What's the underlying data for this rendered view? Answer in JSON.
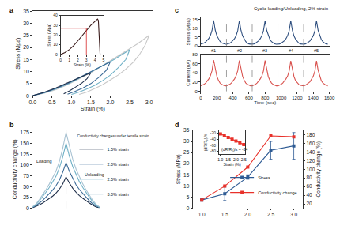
{
  "chart_data": [
    {
      "type": "line",
      "title": "a",
      "x_label": "Strain (%)",
      "y_label": "Stress (Mpa)",
      "xlim": [
        0,
        3.1
      ],
      "xticks": [
        {
          "value": 0,
          "label": "0.0"
        },
        0.5,
        {
          "value": 1,
          "label": "1.0"
        },
        1.5,
        {
          "value": 2,
          "label": "2.0"
        },
        2.5,
        {
          "value": 3,
          "label": "3.0"
        }
      ],
      "ylim": [
        0,
        35
      ],
      "yticks": [
        0,
        5,
        10,
        15,
        20,
        25,
        30,
        35
      ],
      "series": [
        {
          "color": "#c8c8c8",
          "x": [
            0,
            0.3,
            0.6,
            0.9,
            1.2,
            1.5,
            1.8,
            2.1,
            2.4,
            2.7,
            3.0,
            2.9,
            2.75,
            2.6,
            2.4,
            2.2,
            2.0,
            1.8,
            1.6,
            1.4,
            1.2
          ],
          "values": [
            0,
            1,
            2.5,
            4.5,
            7,
            9.5,
            12.5,
            15.5,
            18.5,
            21.5,
            25,
            21,
            17,
            14,
            11,
            8.5,
            6.5,
            4.5,
            3,
            1.5,
            0.5
          ]
        },
        {
          "color": "#6fb0c6",
          "x": [
            0,
            0.3,
            0.6,
            0.9,
            1.2,
            1.5,
            1.8,
            2.1,
            2.5,
            2.4,
            2.2,
            2.0,
            1.8,
            1.6,
            1.4,
            1.2,
            1.0
          ],
          "values": [
            0,
            1.2,
            2.8,
            4.8,
            7.2,
            9.8,
            12.5,
            15,
            19,
            15,
            11.5,
            8.5,
            6.2,
            4.3,
            2.8,
            1.5,
            0.5
          ]
        },
        {
          "color": "#3b6a96",
          "x": [
            0,
            0.3,
            0.6,
            0.9,
            1.2,
            1.5,
            1.8,
            2.0,
            1.9,
            1.7,
            1.5,
            1.3,
            1.1,
            0.9
          ],
          "values": [
            0,
            1.3,
            3,
            5,
            7.5,
            10,
            12.5,
            14,
            10.5,
            7.5,
            5,
            3.2,
            1.8,
            0.6
          ]
        },
        {
          "color": "#1f2f4a",
          "x": [
            0,
            0.3,
            0.6,
            0.9,
            1.2,
            1.5,
            1.4,
            1.25,
            1.1,
            0.95,
            0.8
          ],
          "values": [
            0,
            1.4,
            3.2,
            5.3,
            7.5,
            9.5,
            7,
            5,
            3.5,
            2,
            0.8
          ]
        }
      ]
    },
    {
      "type": "line",
      "x_label": "Strain (%)",
      "y_label": "Stress (Mpa)",
      "xlim": [
        0,
        5
      ],
      "xticks": [
        0,
        1,
        2,
        3,
        4,
        5
      ],
      "ylim": [
        0,
        40
      ],
      "yticks": [
        0,
        10,
        20,
        30,
        40
      ],
      "series": [
        {
          "color": "#3a1a1a",
          "x": [
            0,
            0.5,
            1,
            1.5,
            2,
            2.5,
            3,
            3.5,
            4,
            4.3,
            4.4,
            4.5,
            4.6
          ],
          "values": [
            0,
            2,
            5,
            9,
            14,
            19.5,
            25,
            30,
            34,
            36.5,
            35,
            15,
            0
          ]
        }
      ],
      "guides": {
        "x": 3,
        "y": 27,
        "color": "#d62728"
      }
    },
    {
      "type": "line",
      "title": "b",
      "y_label": "Conductivity change (%)",
      "tick_labels": "y",
      "xlim": [
        0,
        36
      ],
      "ylim": [
        0,
        180
      ],
      "yticks": [
        0,
        25,
        50,
        75,
        100,
        125,
        150,
        175
      ],
      "x": [
        0,
        1,
        2,
        3,
        4,
        5,
        6,
        7,
        8,
        9,
        10,
        11,
        12,
        13,
        14,
        15,
        16,
        17,
        18,
        19,
        20
      ],
      "legend": "upper right",
      "legend_title": "Conductivity changes under tensile strain",
      "annotations": [
        "Loading",
        "Unloading"
      ],
      "dividers": [
        10
      ],
      "series": [
        {
          "name": "1.5% strain",
          "color": "#1f2f4a",
          "values": [
            1,
            4,
            8,
            12,
            17,
            22,
            28,
            35,
            44,
            56,
            72,
            58,
            46,
            37,
            29,
            23,
            17,
            12,
            7,
            3,
            1
          ]
        },
        {
          "name": "2.0% strain",
          "color": "#3b6a96",
          "values": [
            2,
            6,
            12,
            18,
            26,
            34,
            42,
            52,
            65,
            83,
            105,
            85,
            68,
            54,
            43,
            34,
            25,
            17,
            10,
            5,
            2
          ]
        },
        {
          "name": "2.5% strain",
          "color": "#6fb0c6",
          "values": [
            3,
            8,
            17,
            26,
            37,
            48,
            60,
            74,
            93,
            118,
            150,
            120,
            96,
            77,
            61,
            48,
            36,
            25,
            15,
            7,
            2
          ]
        },
        {
          "name": "3.0% strain",
          "color": "#a9c3d3",
          "values": [
            4,
            10,
            20,
            31,
            43,
            56,
            70,
            86,
            108,
            138,
            175,
            142,
            113,
            90,
            72,
            56,
            42,
            29,
            18,
            9,
            3
          ]
        }
      ]
    },
    {
      "type": "line",
      "title": "c",
      "y_label": "Stress (Mpa)",
      "tick_labels": "y",
      "annotations": [
        "Cyclic loading/Unloading, 2% strain",
        "#1",
        "#2",
        "#3",
        "#4",
        "#5"
      ],
      "xlim": [
        0,
        1600
      ],
      "ylim": [
        0,
        16
      ],
      "yticks": [
        0,
        5,
        10,
        15
      ],
      "dividers": [
        320,
        640,
        960,
        1280
      ],
      "x": [
        0,
        20,
        40,
        60,
        80,
        100,
        120,
        140,
        160,
        180,
        200,
        220,
        240,
        260,
        280,
        300,
        320,
        340,
        360,
        380,
        400,
        420,
        440,
        460,
        480,
        500,
        520,
        540,
        560,
        580,
        600,
        620,
        640,
        660,
        680,
        700,
        720,
        740,
        760,
        780,
        800,
        820,
        840,
        860,
        880,
        900,
        920,
        940,
        960,
        980,
        1000,
        1020,
        1040,
        1060,
        1080,
        1100,
        1120,
        1140,
        1160,
        1180,
        1200,
        1220,
        1240,
        1260,
        1280,
        1300,
        1320,
        1340,
        1360,
        1380,
        1400,
        1420,
        1440,
        1460,
        1480,
        1500,
        1520,
        1540,
        1560,
        1580
      ],
      "series": [
        {
          "color": "#2f4f7f",
          "values": [
            1,
            1.2,
            1.6,
            2.2,
            3,
            4.2,
            6,
            8.8,
            14.5,
            9,
            5.8,
            3.8,
            2.5,
            1.7,
            1.2,
            1,
            0.9,
            1.1,
            1.5,
            2.1,
            2.9,
            4.1,
            5.9,
            8.7,
            14.4,
            8.9,
            5.7,
            3.7,
            2.4,
            1.6,
            1.1,
            1,
            0.9,
            1.1,
            1.5,
            2.1,
            2.9,
            4.1,
            5.8,
            8.6,
            14.3,
            8.9,
            5.7,
            3.7,
            2.4,
            1.6,
            1.1,
            0.9,
            0.9,
            1.1,
            1.5,
            2.1,
            2.9,
            4.1,
            5.8,
            8.6,
            14.3,
            8.8,
            5.6,
            3.7,
            2.4,
            1.6,
            1.1,
            0.9,
            0.9,
            1.1,
            1.5,
            2.1,
            2.9,
            4.1,
            5.8,
            8.6,
            14.2,
            8.8,
            5.6,
            3.6,
            2.3,
            1.6,
            1.1,
            1
          ]
        }
      ]
    },
    {
      "type": "line",
      "x_label": "Time (sec)",
      "y_label": "Current (nA)",
      "xlim": [
        0,
        1600
      ],
      "xticks": [
        0,
        200,
        400,
        600,
        800,
        1000,
        1200,
        1400,
        1600
      ],
      "ylim": [
        0,
        80
      ],
      "yticks": [
        0,
        20,
        40,
        60,
        80
      ],
      "x": [
        0,
        20,
        40,
        60,
        80,
        100,
        120,
        140,
        160,
        180,
        200,
        220,
        240,
        260,
        280,
        300,
        320,
        340,
        360,
        380,
        400,
        420,
        440,
        460,
        480,
        500,
        520,
        540,
        560,
        580,
        600,
        620,
        640,
        660,
        680,
        700,
        720,
        740,
        760,
        780,
        800,
        820,
        840,
        860,
        880,
        900,
        920,
        940,
        960,
        980,
        1000,
        1020,
        1040,
        1060,
        1080,
        1100,
        1120,
        1140,
        1160,
        1180,
        1200,
        1220,
        1240,
        1260,
        1280,
        1300,
        1320,
        1340,
        1360,
        1380,
        1400,
        1420,
        1440,
        1460,
        1480,
        1500,
        1520,
        1540,
        1560,
        1580
      ],
      "series": [
        {
          "color": "#d9534f",
          "values": [
            12,
            13,
            15,
            18,
            22,
            27,
            34,
            45,
            68,
            48,
            33,
            24,
            18,
            15,
            13,
            12,
            12,
            13,
            15,
            18,
            22,
            27,
            34,
            45,
            67,
            47,
            33,
            24,
            18,
            15,
            13,
            12,
            12,
            13,
            15,
            18,
            22,
            27,
            33,
            44,
            67,
            47,
            32,
            24,
            18,
            15,
            13,
            12,
            12,
            13,
            15,
            18,
            22,
            27,
            33,
            44,
            66,
            46,
            32,
            23,
            18,
            15,
            13,
            12,
            12,
            13,
            15,
            18,
            21,
            26,
            33,
            44,
            66,
            46,
            32,
            23,
            18,
            15,
            13,
            12
          ]
        }
      ]
    },
    {
      "type": "line",
      "title": "d",
      "y_label": "Stress (MPa)",
      "y2_label": "Conductivity change (%)",
      "xlim": [
        0.8,
        3.2
      ],
      "xticks": [
        {
          "value": 1,
          "label": "1.0"
        },
        1.5,
        {
          "value": 2,
          "label": "2.0"
        },
        2.5,
        {
          "value": 3,
          "label": "3.0"
        }
      ],
      "ylim": [
        0,
        35
      ],
      "yticks": [
        0,
        5,
        10,
        15,
        20,
        25,
        30,
        35
      ],
      "y2lim": [
        10,
        190
      ],
      "y2ticks": [
        20,
        40,
        60,
        80,
        100,
        120,
        140,
        160,
        180
      ],
      "legend": "lower right",
      "x": [
        1,
        1.5,
        2,
        2.5,
        3
      ],
      "series": [
        {
          "name": "Stress",
          "color": "#2e5b94",
          "marker": "square",
          "values": [
            3.7,
            6.5,
            14,
            26,
            28
          ],
          "errors": [
            0.5,
            3,
            1,
            4,
            6
          ]
        },
        {
          "name": "Conductivity change",
          "color": "#e8312a",
          "marker": "square",
          "axis": "y2",
          "values": [
            29,
            61,
            105,
            177,
            175
          ]
        }
      ]
    },
    {
      "type": "line",
      "x_label": "Strain (%)",
      "y_label": "(dR/R₀)/%",
      "annotations": [
        "(dR/R₀)/ε = -24"
      ],
      "xlim": [
        0.9,
        2.6
      ],
      "xticks": [
        {
          "value": 1,
          "label": "1.0"
        },
        1.5,
        {
          "value": 2,
          "label": "2.0"
        },
        2.5
      ],
      "ylim": [
        -90,
        -10
      ],
      "yticks": [
        -20,
        -40,
        -60,
        -80
      ],
      "x": [
        1,
        1.25,
        1.5,
        1.75,
        2,
        2.25,
        2.5
      ],
      "series": [
        {
          "color": "#e8312a",
          "marker": "square",
          "values": [
            -22,
            -28,
            -34,
            -40,
            -46,
            -52,
            -58
          ]
        }
      ]
    }
  ]
}
